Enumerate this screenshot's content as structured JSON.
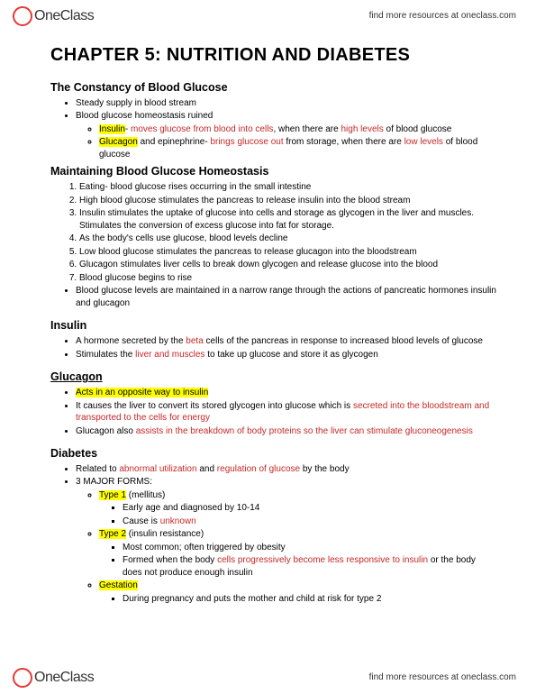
{
  "brand": {
    "name": "OneClass",
    "tagline": "find more resources at oneclass.com"
  },
  "title": "CHAPTER 5: NUTRITION AND DIABETES",
  "sec1": {
    "h": "The Constancy of Blood Glucose",
    "b1": "Steady supply in blood stream",
    "b2": "Blood glucose homeostasis ruined",
    "ins": {
      "lbl": "Insulin",
      "d": "- ",
      "p1": "moves glucose from blood into cells",
      "p2": ", when there are ",
      "p3": "high levels",
      "p4": " of blood glucose"
    },
    "glu": {
      "lbl": "Glucagon",
      "p1": " and epinephrine- ",
      "p2": "brings glucose out",
      "p3": " from storage, when there are ",
      "p4": "low levels",
      "p5": " of blood glucose"
    }
  },
  "sec2": {
    "h": "Maintaining Blood Glucose Homeostasis",
    "o1": "Eating- blood glucose rises occurring in the small intestine",
    "o2": "High blood glucose stimulates the pancreas to release insulin into the blood stream",
    "o3": "Insulin stimulates the uptake of glucose into cells and storage as glycogen in the liver and muscles. Stimulates the conversion of excess glucose into fat for storage.",
    "o4": "As the body's cells use glucose, blood levels decline",
    "o5": "Low blood glucose stimulates the pancreas to release glucagon into the bloodstream",
    "o6": "Glucagon stimulates liver cells to break down glycogen and release glucose into the blood",
    "o7": "Blood glucose begins to rise",
    "b1": "Blood glucose levels are maintained in a narrow range through the actions of pancreatic hormones insulin and glucagon"
  },
  "sec3": {
    "h": "Insulin",
    "b1a": "A hormone secreted by the ",
    "b1b": "beta",
    "b1c": " cells of the pancreas in response to increased blood levels of glucose",
    "b2a": "Stimulates the ",
    "b2b": "liver and muscles",
    "b2c": " to take up glucose and store it as glycogen"
  },
  "sec4": {
    "h": "Glucagon",
    "b1": "Acts in an opposite way to insulin",
    "b2a": "It causes the liver to convert its stored glycogen into glucose which is ",
    "b2b": "secreted into the bloodstream and transported to the cells for energy",
    "b3a": "Glucagon also ",
    "b3b": "assists in the breakdown of body proteins so the liver can stimulate gluconeogenesis"
  },
  "sec5": {
    "h": "Diabetes",
    "b1a": "Related to ",
    "b1b": "abnormal utilization",
    "b1c": " and ",
    "b1d": "regulation of glucose",
    "b1e": " by the body",
    "b2": "3 MAJOR FORMS:",
    "t1": {
      "lbl": "Type 1",
      "sfx": " (mellitus)",
      "s1": "Early age and diagnosed by 10-14",
      "s2a": "Cause is ",
      "s2b": "unknown"
    },
    "t2": {
      "lbl": "Type 2",
      "sfx": " (insulin resistance)",
      "s1": "Most common; often triggered by obesity",
      "s2a": "Formed when the body ",
      "s2b": "cells progressively become less responsive to insulin",
      "s2c": " or the body does not produce enough insulin"
    },
    "g": {
      "lbl": "Gestation",
      "s1": "During pregnancy and puts the mother and child at risk for type 2"
    }
  }
}
